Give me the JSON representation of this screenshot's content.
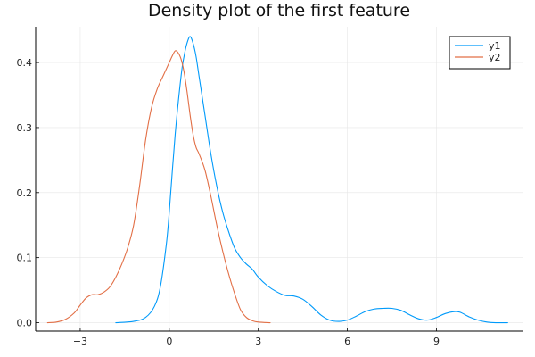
{
  "chart_data": {
    "type": "line",
    "title": "Density plot of the first feature",
    "xlabel": "",
    "ylabel": "",
    "xlim": [
      -4.5,
      11.9
    ],
    "ylim": [
      -0.013,
      0.455
    ],
    "xticks": [
      -3,
      0,
      3,
      6,
      9
    ],
    "yticks": [
      0.0,
      0.1,
      0.2,
      0.3,
      0.4
    ],
    "xtick_labels": [
      "−3",
      "0",
      "3",
      "6",
      "9"
    ],
    "ytick_labels": [
      "0.0",
      "0.1",
      "0.2",
      "0.3",
      "0.4"
    ],
    "grid": true,
    "legend_position": "top-right",
    "series": [
      {
        "name": "y1",
        "color": "#009AFA",
        "x": [
          -1.8,
          -1.2,
          -0.8,
          -0.5,
          -0.3,
          -0.1,
          0.0,
          0.2,
          0.4,
          0.5,
          0.6,
          0.7,
          0.8,
          0.9,
          1.0,
          1.2,
          1.4,
          1.6,
          1.8,
          2.0,
          2.2,
          2.4,
          2.6,
          2.8,
          3.0,
          3.3,
          3.6,
          3.9,
          4.2,
          4.5,
          4.8,
          5.1,
          5.4,
          5.7,
          6.0,
          6.3,
          6.6,
          6.9,
          7.2,
          7.5,
          7.8,
          8.1,
          8.4,
          8.7,
          9.0,
          9.3,
          9.6,
          9.8,
          10.1,
          10.4,
          10.7,
          11.0,
          11.4
        ],
        "values": [
          0.0,
          0.002,
          0.008,
          0.025,
          0.055,
          0.12,
          0.17,
          0.29,
          0.38,
          0.41,
          0.43,
          0.44,
          0.43,
          0.41,
          0.38,
          0.32,
          0.26,
          0.21,
          0.17,
          0.14,
          0.115,
          0.1,
          0.09,
          0.082,
          0.07,
          0.057,
          0.048,
          0.042,
          0.041,
          0.036,
          0.025,
          0.012,
          0.004,
          0.002,
          0.004,
          0.01,
          0.017,
          0.021,
          0.022,
          0.022,
          0.019,
          0.012,
          0.006,
          0.004,
          0.008,
          0.014,
          0.017,
          0.016,
          0.009,
          0.004,
          0.001,
          0.0,
          0.0
        ]
      },
      {
        "name": "y2",
        "color": "#E26F46",
        "x": [
          -4.1,
          -3.8,
          -3.5,
          -3.2,
          -3.0,
          -2.8,
          -2.6,
          -2.4,
          -2.2,
          -2.0,
          -1.8,
          -1.6,
          -1.4,
          -1.2,
          -1.0,
          -0.8,
          -0.6,
          -0.4,
          -0.2,
          0.0,
          0.1,
          0.2,
          0.3,
          0.4,
          0.5,
          0.6,
          0.7,
          0.8,
          0.9,
          1.0,
          1.2,
          1.4,
          1.6,
          1.8,
          2.0,
          2.2,
          2.4,
          2.6,
          2.8,
          3.0,
          3.4
        ],
        "values": [
          0.0,
          0.001,
          0.005,
          0.015,
          0.027,
          0.038,
          0.043,
          0.043,
          0.047,
          0.055,
          0.07,
          0.09,
          0.115,
          0.15,
          0.21,
          0.28,
          0.33,
          0.36,
          0.38,
          0.4,
          0.41,
          0.418,
          0.415,
          0.405,
          0.385,
          0.355,
          0.32,
          0.29,
          0.27,
          0.26,
          0.235,
          0.195,
          0.15,
          0.11,
          0.075,
          0.045,
          0.02,
          0.008,
          0.003,
          0.001,
          0.0
        ]
      }
    ]
  }
}
